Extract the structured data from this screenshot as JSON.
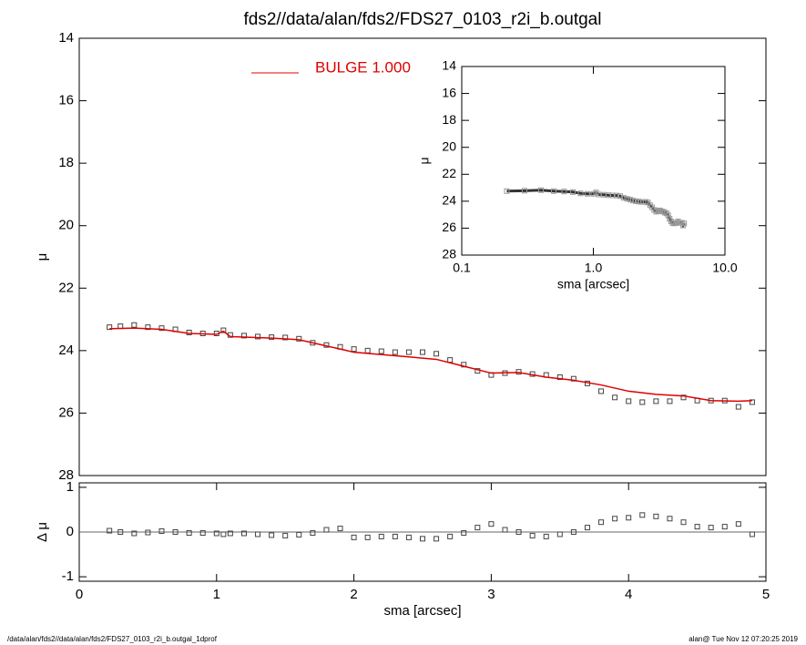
{
  "chart_data": [
    {
      "type": "scatter",
      "title": "fds2//data/alan/fds2/FDS27_0103_r2i_b.outgal",
      "ylabel": "μ",
      "x": [
        0.22,
        0.3,
        0.4,
        0.5,
        0.6,
        0.7,
        0.8,
        0.9,
        1.0,
        1.05,
        1.1,
        1.2,
        1.3,
        1.4,
        1.5,
        1.6,
        1.7,
        1.8,
        1.9,
        2.0,
        2.1,
        2.2,
        2.3,
        2.4,
        2.5,
        2.6,
        2.7,
        2.8,
        2.9,
        3.0,
        3.1,
        3.2,
        3.3,
        3.4,
        3.5,
        3.6,
        3.7,
        3.8,
        3.9,
        4.0,
        4.1,
        4.2,
        4.3,
        4.4,
        4.5,
        4.6,
        4.7,
        4.8,
        4.9
      ],
      "values": [
        23.25,
        23.22,
        23.18,
        23.25,
        23.28,
        23.32,
        23.42,
        23.45,
        23.45,
        23.35,
        23.5,
        23.52,
        23.55,
        23.57,
        23.58,
        23.62,
        23.75,
        23.82,
        23.88,
        23.95,
        24.0,
        24.02,
        24.05,
        24.05,
        24.05,
        24.1,
        24.3,
        24.45,
        24.65,
        24.78,
        24.72,
        24.68,
        24.75,
        24.78,
        24.85,
        24.9,
        25.05,
        25.3,
        25.5,
        25.62,
        25.65,
        25.62,
        25.62,
        25.5,
        25.6,
        25.6,
        25.6,
        25.8,
        25.65
      ],
      "color": "#444444",
      "series": [
        {
          "name": "BULGE  1.000",
          "color": "#e00000",
          "x": [
            0.22,
            0.4,
            0.6,
            0.8,
            1.0,
            1.05,
            1.1,
            1.4,
            1.6,
            1.8,
            2.0,
            2.4,
            2.6,
            2.8,
            3.0,
            3.2,
            3.4,
            3.6,
            3.8,
            4.0,
            4.2,
            4.4,
            4.6,
            4.8,
            4.9
          ],
          "values": [
            23.3,
            23.28,
            23.32,
            23.45,
            23.48,
            23.38,
            23.55,
            23.6,
            23.65,
            23.85,
            24.05,
            24.2,
            24.28,
            24.5,
            24.72,
            24.7,
            24.85,
            24.95,
            25.1,
            25.3,
            25.4,
            25.45,
            25.6,
            25.62,
            25.6
          ]
        }
      ],
      "xlim": [
        0,
        5
      ],
      "ylim": [
        14,
        28
      ],
      "y_inverted": true,
      "yticks": [
        14,
        16,
        18,
        20,
        22,
        24,
        26,
        28
      ]
    },
    {
      "type": "scatter",
      "ylabel": "Δ μ",
      "xlabel": "sma [arcsec]",
      "x": [
        0.22,
        0.3,
        0.4,
        0.5,
        0.6,
        0.7,
        0.8,
        0.9,
        1.0,
        1.05,
        1.1,
        1.2,
        1.3,
        1.4,
        1.5,
        1.6,
        1.7,
        1.8,
        1.9,
        2.0,
        2.1,
        2.2,
        2.3,
        2.4,
        2.5,
        2.6,
        2.7,
        2.8,
        2.9,
        3.0,
        3.1,
        3.2,
        3.3,
        3.4,
        3.5,
        3.6,
        3.7,
        3.8,
        3.9,
        4.0,
        4.1,
        4.2,
        4.3,
        4.4,
        4.5,
        4.6,
        4.7,
        4.8,
        4.9
      ],
      "values": [
        0.03,
        0,
        -0.03,
        -0.01,
        0.02,
        0,
        -0.02,
        -0.02,
        -0.03,
        -0.05,
        -0.03,
        -0.03,
        -0.05,
        -0.07,
        -0.08,
        -0.06,
        -0.02,
        0.05,
        0.08,
        -0.12,
        -0.12,
        -0.1,
        -0.1,
        -0.12,
        -0.15,
        -0.15,
        -0.1,
        -0.02,
        0.1,
        0.18,
        0.05,
        0,
        -0.08,
        -0.1,
        -0.05,
        0,
        0.1,
        0.22,
        0.3,
        0.32,
        0.38,
        0.35,
        0.3,
        0.22,
        0.12,
        0.1,
        0.12,
        0.18,
        -0.05
      ],
      "color": "#444444",
      "xlim": [
        0,
        5
      ],
      "xticks": [
        0,
        1,
        2,
        3,
        4,
        5
      ],
      "ylim": [
        -1.1,
        1.1
      ],
      "yticks": [
        1,
        0,
        -1
      ]
    },
    {
      "type": "line",
      "ylabel": "μ",
      "xlabel": "sma [arcsec]",
      "x_log": true,
      "y_inverted": true,
      "xlim": [
        0.1,
        10
      ],
      "xticks": [
        0.1,
        {
          "value": 1,
          "label": "1.0"
        },
        {
          "value": 10,
          "label": "10.0"
        }
      ],
      "ylim": [
        14,
        28
      ],
      "yticks": [
        14,
        16,
        18,
        20,
        22,
        24,
        26,
        28
      ],
      "color": "#333333"
    }
  ],
  "footer": {
    "left": "/data/alan/fds2//data/alan/fds2/FDS27_0103_r2i_b.outgal_1dprof",
    "right": "alan@  Tue Nov 12 07:20:25 2019"
  }
}
